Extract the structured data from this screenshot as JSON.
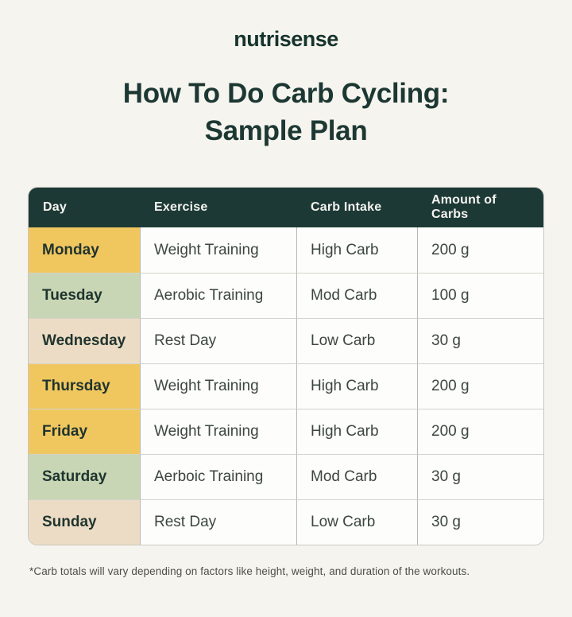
{
  "page": {
    "background_color": "#f6f4ef"
  },
  "brand": {
    "logo_text": "nutrisense",
    "logo_color": "#16332d"
  },
  "title": {
    "line1": "How To Do Carb Cycling:",
    "line2": "Sample Plan"
  },
  "table": {
    "columns": [
      "Day",
      "Exercise",
      "Carb Intake",
      "Amount of Carbs"
    ],
    "rows": [
      {
        "day": "Monday",
        "exercise": "Weight Training",
        "carb_intake": "High Carb",
        "amount": "200 g",
        "day_color": "#f0c75f"
      },
      {
        "day": "Tuesday",
        "exercise": "Aerobic Training",
        "carb_intake": "Mod Carb",
        "amount": "100 g",
        "day_color": "#c8d6b5"
      },
      {
        "day": "Wednesday",
        "exercise": "Rest Day",
        "carb_intake": "Low Carb",
        "amount": "30 g",
        "day_color": "#eddcc5"
      },
      {
        "day": "Thursday",
        "exercise": "Weight Training",
        "carb_intake": "High Carb",
        "amount": "200 g",
        "day_color": "#f0c75f"
      },
      {
        "day": "Friday",
        "exercise": "Weight Training",
        "carb_intake": "High Carb",
        "amount": "200 g",
        "day_color": "#f0c75f"
      },
      {
        "day": "Saturday",
        "exercise": "Aerboic Training",
        "carb_intake": "Mod Carb",
        "amount": "30 g",
        "day_color": "#c8d6b5"
      },
      {
        "day": "Sunday",
        "exercise": "Rest Day",
        "carb_intake": "Low Carb",
        "amount": "30 g",
        "day_color": "#eddcc5"
      }
    ]
  },
  "footnote": {
    "text": "*Carb totals will vary depending on factors like height, weight, and duration of the workouts."
  },
  "colors": {
    "header_bg": "#1d3936",
    "header_text": "#f5f4ef",
    "high_carb_day": "#f0c75f",
    "mod_carb_day": "#c8d6b5",
    "low_carb_day": "#eddcc5",
    "title_color": "#1d3833"
  },
  "chart_data": {
    "type": "table",
    "title": "How To Do Carb Cycling: Sample Plan",
    "columns": [
      "Day",
      "Exercise",
      "Carb Intake",
      "Amount of Carbs"
    ],
    "rows": [
      [
        "Monday",
        "Weight Training",
        "High Carb",
        "200 g"
      ],
      [
        "Tuesday",
        "Aerobic Training",
        "Mod Carb",
        "100 g"
      ],
      [
        "Wednesday",
        "Rest Day",
        "Low Carb",
        "30 g"
      ],
      [
        "Thursday",
        "Weight Training",
        "High Carb",
        "200 g"
      ],
      [
        "Friday",
        "Weight Training",
        "High Carb",
        "200 g"
      ],
      [
        "Saturday",
        "Aerboic Training",
        "Mod Carb",
        "30 g"
      ],
      [
        "Sunday",
        "Rest Day",
        "Low Carb",
        "30 g"
      ]
    ],
    "amount_of_carbs_grams": [
      200,
      100,
      30,
      200,
      200,
      30,
      30
    ],
    "legend_semantics": {
      "#f0c75f": "High Carb day",
      "#c8d6b5": "Mod Carb day",
      "#eddcc5": "Low Carb day"
    }
  }
}
